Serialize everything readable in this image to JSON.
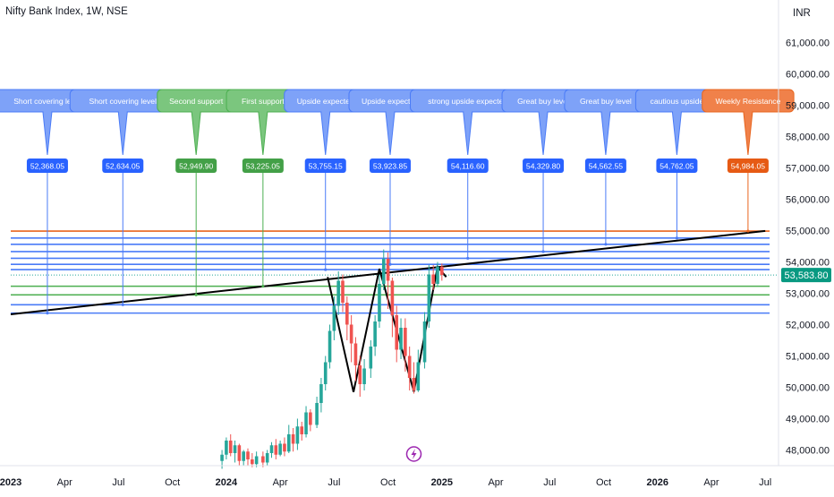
{
  "chart_data": {
    "type": "candlestick",
    "title": "Nifty Bank Index, 1W, NSE",
    "currency": "INR",
    "last_price": "53,583.80",
    "ylim": [
      47500,
      61500
    ],
    "y_ticks": [
      "48,000.00",
      "49,000.00",
      "50,000.00",
      "51,000.00",
      "52,000.00",
      "53,000.00",
      "54,000.00",
      "55,000.00",
      "56,000.00",
      "57,000.00",
      "58,000.00",
      "59,000.00",
      "60,000.00",
      "61,000.00"
    ],
    "y_tick_values": [
      48000,
      49000,
      50000,
      51000,
      52000,
      53000,
      54000,
      55000,
      56000,
      57000,
      58000,
      59000,
      60000,
      61000
    ],
    "x_ticks": [
      {
        "label": "2023",
        "t": 2023.0,
        "bold": true
      },
      {
        "label": "Apr",
        "t": 2023.25
      },
      {
        "label": "Jul",
        "t": 2023.5
      },
      {
        "label": "Oct",
        "t": 2023.75
      },
      {
        "label": "2024",
        "t": 2024.0,
        "bold": true
      },
      {
        "label": "Apr",
        "t": 2024.25
      },
      {
        "label": "Jul",
        "t": 2024.5
      },
      {
        "label": "Oct",
        "t": 2024.75
      },
      {
        "label": "2025",
        "t": 2025.0,
        "bold": true
      },
      {
        "label": "Apr",
        "t": 2025.25
      },
      {
        "label": "Jul",
        "t": 2025.5
      },
      {
        "label": "Oct",
        "t": 2025.75
      },
      {
        "label": "2026",
        "t": 2026.0,
        "bold": true
      },
      {
        "label": "Apr",
        "t": 2026.25
      },
      {
        "label": "Jul",
        "t": 2026.5
      }
    ],
    "xlim": [
      2023.0,
      2026.52
    ],
    "levels": [
      {
        "label": "Short covering level",
        "value": "52,368.05",
        "price": 52368.05,
        "t": 2023.17,
        "color": "#4a7bf7",
        "bubble": "#7ea2f8"
      },
      {
        "label": "Short covering level",
        "value": "52,634.05",
        "price": 52634.05,
        "t": 2023.52,
        "color": "#4a7bf7",
        "bubble": "#7ea2f8"
      },
      {
        "label": "Second support",
        "value": "52,949.90",
        "price": 52949.9,
        "t": 2023.86,
        "color": "#4caf50",
        "bubble": "#7bc67e"
      },
      {
        "label": "First support",
        "value": "53,225.05",
        "price": 53225.05,
        "t": 2024.17,
        "color": "#4caf50",
        "bubble": "#7bc67e"
      },
      {
        "label": "Upside expected",
        "value": "53,755.15",
        "price": 53755.15,
        "t": 2024.46,
        "color": "#4a7bf7",
        "bubble": "#7ea2f8"
      },
      {
        "label": "Upside expected",
        "value": "53,923.85",
        "price": 53923.85,
        "t": 2024.76,
        "color": "#4a7bf7",
        "bubble": "#7ea2f8"
      },
      {
        "label": "strong upside expected",
        "value": "54,116.60",
        "price": 54116.6,
        "t": 2025.12,
        "color": "#4a7bf7",
        "bubble": "#7ea2f8"
      },
      {
        "label": "Great buy level",
        "value": "54,329.80",
        "price": 54329.8,
        "t": 2025.47,
        "color": "#4a7bf7",
        "bubble": "#7ea2f8"
      },
      {
        "label": "Great buy level",
        "value": "54,562.55",
        "price": 54562.55,
        "t": 2025.76,
        "color": "#4a7bf7",
        "bubble": "#7ea2f8"
      },
      {
        "label": "cautious upside",
        "value": "54,762.05",
        "price": 54762.05,
        "t": 2026.09,
        "color": "#4a7bf7",
        "bubble": "#7ea2f8"
      },
      {
        "label": "Weekly Resistance",
        "value": "54,984.05",
        "price": 54984.05,
        "t": 2026.42,
        "color": "#e8651f",
        "bubble": "#f0814a"
      }
    ],
    "trendline": [
      [
        2023.0,
        52330
      ],
      [
        2026.5,
        54990
      ]
    ],
    "pattern_m": [
      [
        2024.47,
        53520
      ],
      [
        2024.59,
        49850
      ],
      [
        2024.71,
        53780
      ],
      [
        2024.87,
        49860
      ],
      [
        2024.98,
        53850
      ],
      [
        2025.02,
        53520
      ]
    ],
    "candles": [
      [
        2023.98,
        47650,
        47850,
        47400,
        48000
      ],
      [
        2024.0,
        47850,
        48300,
        47700,
        48400
      ],
      [
        2024.02,
        48300,
        47900,
        47800,
        48500
      ],
      [
        2024.04,
        47900,
        48150,
        47600,
        48300
      ],
      [
        2024.06,
        48150,
        47650,
        47500,
        48200
      ],
      [
        2024.08,
        47650,
        47950,
        47500,
        48000
      ],
      [
        2024.1,
        47950,
        47700,
        47500,
        48050
      ],
      [
        2024.12,
        47700,
        47550,
        47450,
        47900
      ],
      [
        2024.14,
        47550,
        47800,
        47450,
        47950
      ],
      [
        2024.17,
        47800,
        47600,
        47450,
        47950
      ],
      [
        2024.19,
        47600,
        47900,
        47500,
        48000
      ],
      [
        2024.21,
        47900,
        48150,
        47750,
        48250
      ],
      [
        2024.23,
        48150,
        47850,
        47700,
        48350
      ],
      [
        2024.25,
        47850,
        48200,
        47800,
        48300
      ],
      [
        2024.27,
        48200,
        47950,
        47800,
        48400
      ],
      [
        2024.29,
        47950,
        48500,
        47900,
        48800
      ],
      [
        2024.31,
        48500,
        48200,
        47950,
        48700
      ],
      [
        2024.33,
        48200,
        48750,
        48000,
        49000
      ],
      [
        2024.35,
        48750,
        48500,
        48300,
        48900
      ],
      [
        2024.37,
        48500,
        49200,
        48400,
        49400
      ],
      [
        2024.39,
        49200,
        48800,
        48600,
        49300
      ],
      [
        2024.42,
        48800,
        49500,
        48700,
        49700
      ],
      [
        2024.44,
        49500,
        50100,
        49200,
        50300
      ],
      [
        2024.46,
        50100,
        50800,
        49900,
        51000
      ],
      [
        2024.48,
        50800,
        51800,
        50600,
        52000
      ],
      [
        2024.5,
        51800,
        52600,
        51500,
        52900
      ],
      [
        2024.52,
        52600,
        53400,
        52300,
        53700
      ],
      [
        2024.54,
        53400,
        52700,
        52400,
        53600
      ],
      [
        2024.56,
        52700,
        52000,
        51500,
        52900
      ],
      [
        2024.58,
        52000,
        51400,
        50800,
        52300
      ],
      [
        2024.6,
        51400,
        50700,
        50200,
        51600
      ],
      [
        2024.62,
        50700,
        50100,
        49700,
        51000
      ],
      [
        2024.64,
        50100,
        50600,
        49900,
        50900
      ],
      [
        2024.67,
        50600,
        51300,
        50300,
        51500
      ],
      [
        2024.69,
        51300,
        52100,
        51000,
        52300
      ],
      [
        2024.71,
        52100,
        53300,
        51900,
        53600
      ],
      [
        2024.73,
        53300,
        54100,
        53100,
        54400
      ],
      [
        2024.75,
        54100,
        53400,
        52500,
        54300
      ],
      [
        2024.77,
        53400,
        52300,
        51600,
        53500
      ],
      [
        2024.79,
        52300,
        51200,
        50800,
        52600
      ],
      [
        2024.81,
        51200,
        51900,
        50900,
        52200
      ],
      [
        2024.83,
        51900,
        51000,
        50500,
        52200
      ],
      [
        2024.85,
        51000,
        50300,
        49900,
        51300
      ],
      [
        2024.87,
        50300,
        49900,
        49800,
        50800
      ],
      [
        2024.89,
        49900,
        50800,
        49850,
        51200
      ],
      [
        2024.92,
        50800,
        52100,
        50600,
        52400
      ],
      [
        2024.94,
        52100,
        53600,
        51900,
        53900
      ],
      [
        2024.96,
        53600,
        53300,
        53100,
        53900
      ],
      [
        2024.98,
        53300,
        53850,
        53200,
        54000
      ],
      [
        2025.0,
        53850,
        53584,
        53400,
        53950
      ]
    ]
  }
}
